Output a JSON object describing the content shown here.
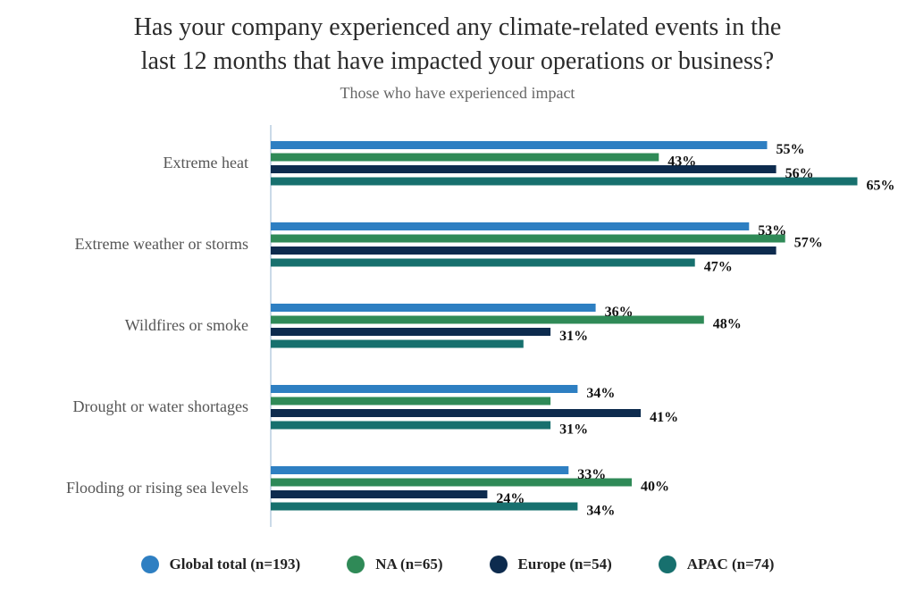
{
  "chart_data": {
    "type": "bar",
    "orientation": "horizontal",
    "title_line1": "Has your company experienced any climate-related events in the",
    "title_line2": "last 12 months that have impacted your operations or business?",
    "subtitle": "Those who have experienced impact",
    "categories": [
      "Extreme heat",
      "Extreme weather or storms",
      "Wildfires or smoke",
      "Drought or water shortages",
      "Flooding or rising sea levels"
    ],
    "series": [
      {
        "name": "Global total (n=193)",
        "color": "#2e7fc2",
        "values": [
          55,
          53,
          36,
          34,
          33
        ]
      },
      {
        "name": "NA (n=65)",
        "color": "#2f8a57",
        "values": [
          43,
          57,
          48,
          31,
          40
        ]
      },
      {
        "name": "Europe (n=54)",
        "color": "#0d2b4e",
        "values": [
          56,
          56,
          31,
          41,
          24
        ]
      },
      {
        "name": "APAC (n=74)",
        "color": "#17706e",
        "values": [
          65,
          47,
          28,
          31,
          34
        ]
      }
    ],
    "data_labels": [
      [
        "55%",
        "43%",
        "56%",
        "65%"
      ],
      [
        "53%",
        "57%",
        "",
        "47%"
      ],
      [
        "36%",
        "48%",
        "31%",
        ""
      ],
      [
        "34%",
        "",
        "41%",
        "31%"
      ],
      [
        "33%",
        "40%",
        "24%",
        "34%"
      ]
    ],
    "xlim": [
      0,
      65
    ],
    "legend_position": "bottom",
    "grid": false
  }
}
